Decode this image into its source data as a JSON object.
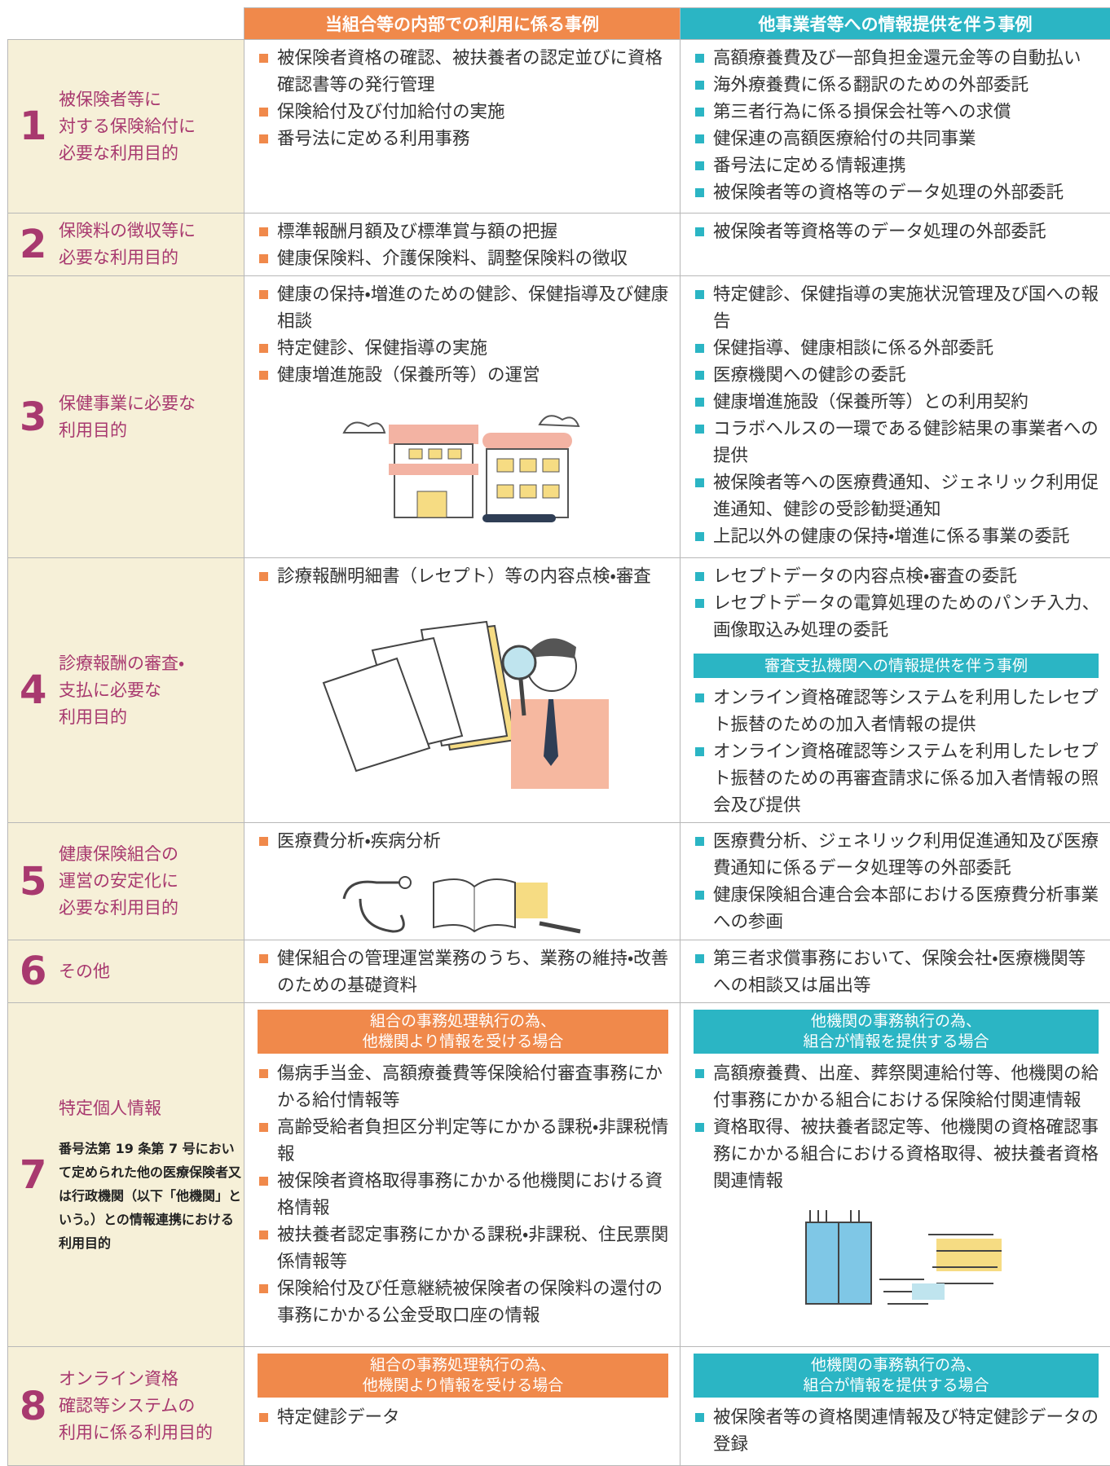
{
  "header": {
    "internal": "当組合等の内部での利用に係る事例",
    "external": "他事業者等への情報提供を伴う事例"
  },
  "rows": [
    {
      "number": "1",
      "label": [
        "被保険者等に",
        "対する保険給付に",
        "必要な利用目的"
      ],
      "internal": {
        "items": [
          "被保険者資格の確認、被扶養者の認定並びに資格確認書等の発行管理",
          "保険給付及び付加給付の実施",
          "番号法に定める利用事務"
        ]
      },
      "external": {
        "items": [
          "高額療養費及び一部負担金還元金等の自動払い",
          "海外療養費に係る翻訳のための外部委託",
          "第三者行為に係る損保会社等への求償",
          "健保連の高額医療給付の共同事業",
          "番号法に定める情報連携",
          "被保険者等の資格等のデータ処理の外部委託"
        ]
      }
    },
    {
      "number": "2",
      "label": [
        "保険料の徴収等に",
        "必要な利用目的"
      ],
      "internal": {
        "items": [
          "標準報酬月額及び標準賞与額の把握",
          "健康保険料、介護保険料、調整保険料の徴収"
        ]
      },
      "external": {
        "items": [
          "被保険者等資格等のデータ処理の外部委託"
        ]
      }
    },
    {
      "number": "3",
      "label": [
        "保健事業に必要な",
        "利用目的"
      ],
      "internal": {
        "items": [
          "健康の保持・増進のための健診、保健指導及び健康相談",
          "特定健診、保健指導の実施",
          "健康増進施設（保養所等）の運営"
        ]
      },
      "external": {
        "items": [
          "特定健診、保健指導の実施状況管理及び国への報告",
          "保健指導、健康相談に係る外部委託",
          "医療機関への健診の委託",
          "健康増進施設（保養所等）との利用契約",
          "コラボヘルスの一環である健診結果の事業者への提供",
          "被保険者等への医療費通知、ジェネリック利用促進通知、健診の受診勧奨通知",
          "上記以外の健康の保持・増進に係る事業の委託"
        ]
      }
    },
    {
      "number": "4",
      "label": [
        "診療報酬の審査・",
        "支払に必要な",
        "利用目的"
      ],
      "internal": {
        "items": [
          "診療報酬明細書（レセプト）等の内容点検・審査"
        ]
      },
      "external": {
        "items": [
          "レセプトデータの内容点検・審査の委託",
          "レセプトデータの電算処理のためのパンチ入力、画像取込み処理の委託"
        ]
      },
      "external_extra": {
        "title": "審査支払機関への情報提供を伴う事例",
        "items": [
          "オンライン資格確認等システムを利用したレセプト振替のための加入者情報の提供",
          "オンライン資格確認等システムを利用したレセプト振替のための再審査請求に係る加入者情報の照会及び提供"
        ]
      }
    },
    {
      "number": "5",
      "label": [
        "健康保険組合の",
        "運営の安定化に",
        "必要な利用目的"
      ],
      "internal": {
        "items": [
          "医療費分析・疾病分析"
        ]
      },
      "external": {
        "items": [
          "医療費分析、ジェネリック利用促進通知及び医療費通知に係るデータ処理等の外部委託",
          "健康保険組合連合会本部における医療費分析事業への参画"
        ]
      }
    },
    {
      "number": "6",
      "label": [
        "その他"
      ],
      "internal": {
        "items": [
          "健保組合の管理運営業務のうち、業務の維持・改善のための基礎資料"
        ]
      },
      "external": {
        "items": [
          "第三者求償事務において、保険会社・医療機関等への相談又は届出等"
        ]
      }
    },
    {
      "number": "7",
      "label": [
        "特定個人情報"
      ],
      "note": "番号法第 19 条第 7 号において定められた他の医療保険者又は行政機関（以下「他機関」という。）との情報連携における利用目的",
      "internal": {
        "title": [
          "組合の事務処理執行の為、",
          "他機関より情報を受ける場合"
        ],
        "items": [
          "傷病手当金、高額療養費等保険給付審査事務にかかる給付情報等",
          "高齢受給者負担区分判定等にかかる課税・非課税情報",
          "被保険者資格取得事務にかかる他機関における資格情報",
          "被扶養者認定事務にかかる課税・非課税、住民票関係情報等",
          "保険給付及び任意継続被保険者の保険料の還付の事務にかかる公金受取口座の情報"
        ]
      },
      "external": {
        "title": [
          "他機関の事務執行の為、",
          "組合が情報を提供する場合"
        ],
        "items": [
          "高額療養費、出産、葬祭関連給付等、他機関の給付事務にかかる組合における保険給付関連情報",
          "資格取得、被扶養者認定等、他機関の資格確認事務にかかる組合における資格取得、被扶養者資格関連情報"
        ]
      }
    },
    {
      "number": "8",
      "label": [
        "オンライン資格",
        "確認等システムの",
        "利用に係る利用目的"
      ],
      "internal": {
        "title": [
          "組合の事務処理執行の為、",
          "他機関より情報を受ける場合"
        ],
        "items": [
          "特定健診データ"
        ]
      },
      "external": {
        "title": [
          "他機関の事務執行の為、",
          "組合が情報を提供する場合"
        ],
        "items": [
          "被保険者等の資格関連情報及び特定健診データの登録"
        ]
      }
    }
  ]
}
